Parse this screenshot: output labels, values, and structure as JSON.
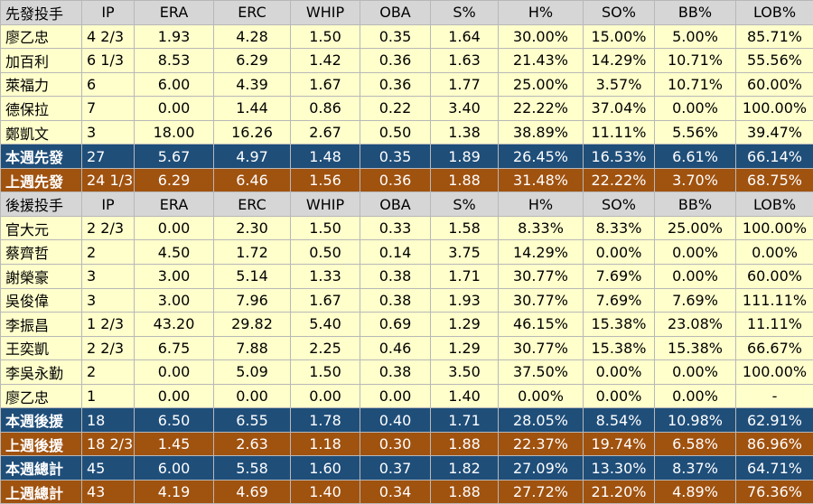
{
  "columns": [
    "IP",
    "ERA",
    "ERC",
    "WHIP",
    "OBA",
    "S%",
    "H%",
    "SO%",
    "BB%",
    "LOB%"
  ],
  "starters": {
    "header": "先發投手",
    "rows": [
      {
        "name": "廖乙忠",
        "cells": [
          "4 2/3",
          "1.93",
          "4.28",
          "1.50",
          "0.35",
          "1.64",
          "30.00%",
          "15.00%",
          "5.00%",
          "85.71%"
        ]
      },
      {
        "name": "加百利",
        "cells": [
          "6 1/3",
          "8.53",
          "6.29",
          "1.42",
          "0.36",
          "1.63",
          "21.43%",
          "14.29%",
          "10.71%",
          "55.56%"
        ]
      },
      {
        "name": "萊福力",
        "cells": [
          "6",
          "6.00",
          "4.39",
          "1.67",
          "0.36",
          "1.77",
          "25.00%",
          "3.57%",
          "10.71%",
          "60.00%"
        ]
      },
      {
        "name": "德保拉",
        "cells": [
          "7",
          "0.00",
          "1.44",
          "0.86",
          "0.22",
          "3.40",
          "22.22%",
          "37.04%",
          "0.00%",
          "100.00%"
        ]
      },
      {
        "name": "鄭凱文",
        "cells": [
          "3",
          "18.00",
          "16.26",
          "2.67",
          "0.50",
          "1.38",
          "38.89%",
          "11.11%",
          "5.56%",
          "39.47%"
        ]
      }
    ],
    "this_week": {
      "name": "本週先發",
      "cells": [
        "27",
        "5.67",
        "4.97",
        "1.48",
        "0.35",
        "1.89",
        "26.45%",
        "16.53%",
        "6.61%",
        "66.14%"
      ]
    },
    "last_week": {
      "name": "上週先發",
      "cells": [
        "24 1/3",
        "6.29",
        "6.46",
        "1.56",
        "0.36",
        "1.88",
        "31.48%",
        "22.22%",
        "3.70%",
        "68.75%"
      ]
    }
  },
  "relievers": {
    "header": "後援投手",
    "rows": [
      {
        "name": "官大元",
        "cells": [
          "2 2/3",
          "0.00",
          "2.30",
          "1.50",
          "0.33",
          "1.58",
          "8.33%",
          "8.33%",
          "25.00%",
          "100.00%"
        ]
      },
      {
        "name": "蔡齊哲",
        "cells": [
          "2",
          "4.50",
          "1.72",
          "0.50",
          "0.14",
          "3.75",
          "14.29%",
          "0.00%",
          "0.00%",
          "0.00%"
        ]
      },
      {
        "name": "謝榮豪",
        "cells": [
          "3",
          "3.00",
          "5.14",
          "1.33",
          "0.38",
          "1.71",
          "30.77%",
          "7.69%",
          "0.00%",
          "60.00%"
        ]
      },
      {
        "name": "吳俊偉",
        "cells": [
          "3",
          "3.00",
          "7.96",
          "1.67",
          "0.38",
          "1.93",
          "30.77%",
          "7.69%",
          "7.69%",
          "111.11%"
        ]
      },
      {
        "name": "李振昌",
        "cells": [
          "1 2/3",
          "43.20",
          "29.82",
          "5.40",
          "0.69",
          "1.29",
          "46.15%",
          "15.38%",
          "23.08%",
          "11.11%"
        ]
      },
      {
        "name": "王奕凱",
        "cells": [
          "2 2/3",
          "6.75",
          "7.88",
          "2.25",
          "0.46",
          "1.29",
          "30.77%",
          "15.38%",
          "15.38%",
          "66.67%"
        ]
      },
      {
        "name": "李吳永勤",
        "cells": [
          "2",
          "0.00",
          "5.09",
          "1.50",
          "0.38",
          "3.50",
          "37.50%",
          "0.00%",
          "0.00%",
          "100.00%"
        ]
      },
      {
        "name": "廖乙忠",
        "cells": [
          "1",
          "0.00",
          "0.00",
          "0.00",
          "0.00",
          "1.40",
          "0.00%",
          "0.00%",
          "0.00%",
          "-"
        ]
      }
    ],
    "this_week": {
      "name": "本週後援",
      "cells": [
        "18",
        "6.50",
        "6.55",
        "1.78",
        "0.40",
        "1.71",
        "28.05%",
        "8.54%",
        "10.98%",
        "62.91%"
      ]
    },
    "last_week": {
      "name": "上週後援",
      "cells": [
        "18 2/3",
        "1.45",
        "2.63",
        "1.18",
        "0.30",
        "1.88",
        "22.37%",
        "19.74%",
        "6.58%",
        "86.96%"
      ]
    }
  },
  "totals": {
    "this_week": {
      "name": "本週總計",
      "cells": [
        "45",
        "6.00",
        "5.58",
        "1.60",
        "0.37",
        "1.82",
        "27.09%",
        "13.30%",
        "8.37%",
        "64.71%"
      ]
    },
    "last_week": {
      "name": "上週總計",
      "cells": [
        "43",
        "4.19",
        "4.69",
        "1.40",
        "0.34",
        "1.88",
        "27.72%",
        "21.20%",
        "4.89%",
        "76.36%"
      ]
    }
  },
  "colors": {
    "header_bg": "#d6d6d6",
    "row_bg": "#ffffcc",
    "this_week_bg": "#1f4e79",
    "last_week_bg": "#a0520f"
  }
}
